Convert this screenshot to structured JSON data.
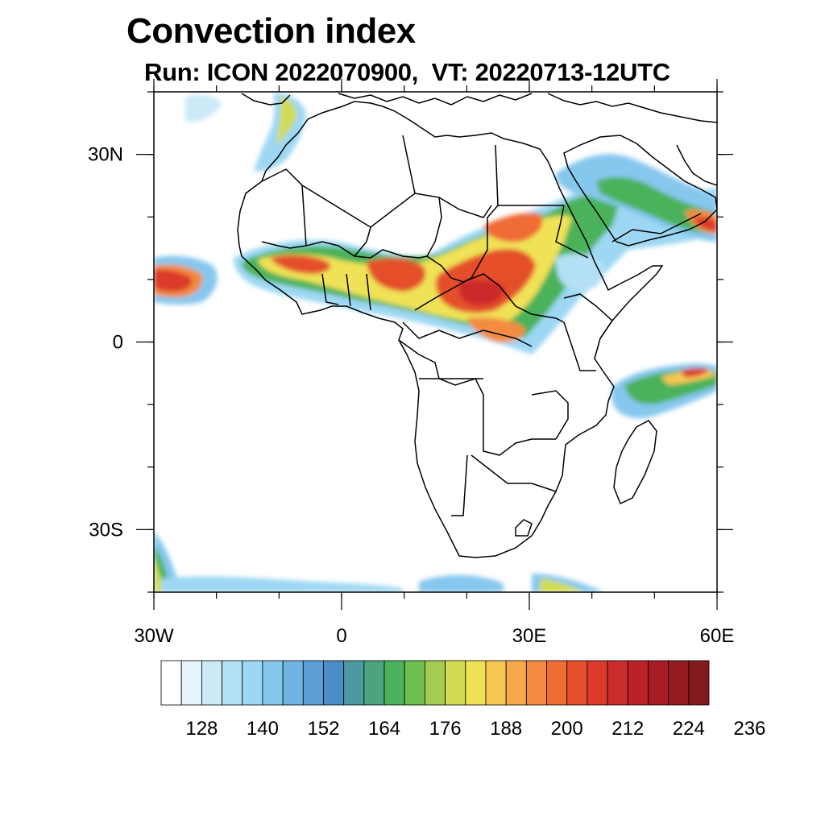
{
  "title": "Convection index",
  "subtitle": "Run: ICON 2022070900,  VT: 20220713-12UTC",
  "map": {
    "lon_range": [
      -30,
      60
    ],
    "lat_range": [
      -40,
      40
    ],
    "lat_ticks": [
      {
        "value": 30,
        "label": "30N"
      },
      {
        "value": 0,
        "label": "0"
      },
      {
        "value": -30,
        "label": "30S"
      }
    ],
    "lon_ticks": [
      {
        "value": -30,
        "label": "30W"
      },
      {
        "value": 0,
        "label": "0"
      },
      {
        "value": 30,
        "label": "30E"
      },
      {
        "value": 60,
        "label": "60E"
      }
    ],
    "minor_ticks_deg": 10
  },
  "colorbar": {
    "colors": [
      "#ffffff",
      "#e6f4fb",
      "#cbe9f7",
      "#b4e0f5",
      "#9dd7f3",
      "#86c7ee",
      "#6fb4e3",
      "#5a9fd6",
      "#4a8ec8",
      "#4a9aa0",
      "#4aa57c",
      "#4ab25a",
      "#6fbe50",
      "#a5cc50",
      "#d2dc52",
      "#f0e256",
      "#f8c655",
      "#f7a84a",
      "#f38b40",
      "#ef6c35",
      "#e4502c",
      "#dc3a2c",
      "#cc2c2c",
      "#ba2227",
      "#a81d24",
      "#941b20",
      "#821a1d"
    ],
    "labels": [
      "128",
      "140",
      "152",
      "164",
      "176",
      "188",
      "200",
      "212",
      "224",
      "236"
    ]
  }
}
